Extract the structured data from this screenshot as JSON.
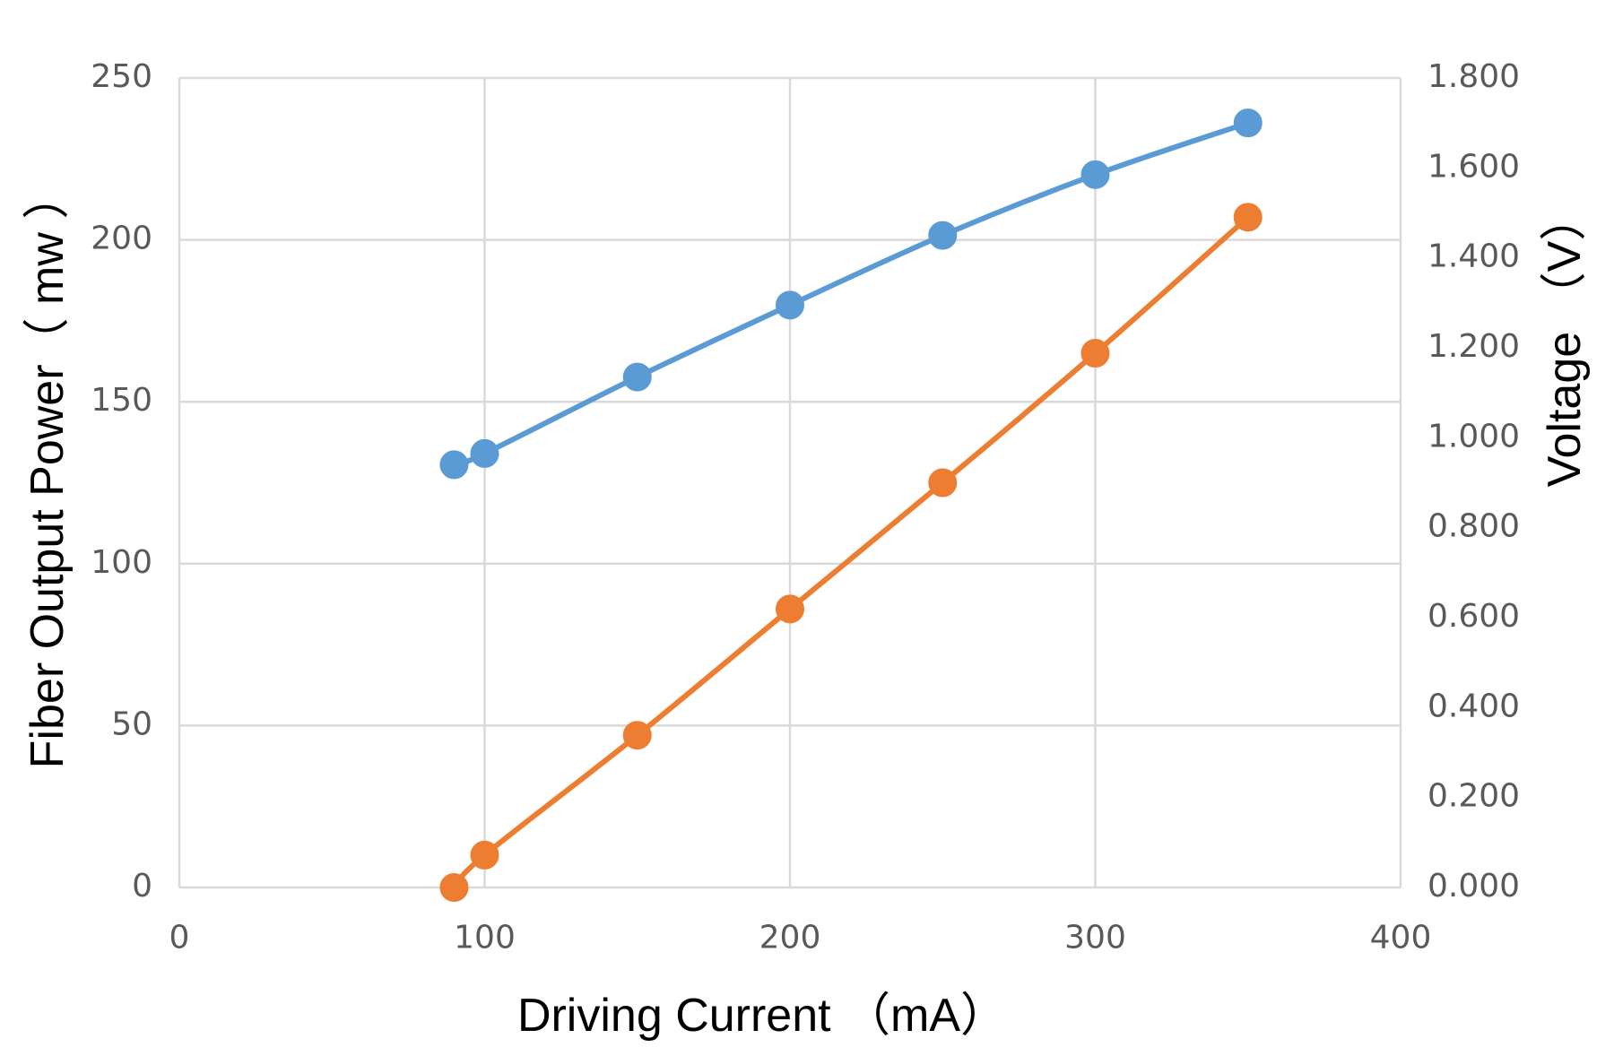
{
  "chart_data": {
    "type": "line",
    "title": "",
    "xlabel": "Driving Current （mA）",
    "ylabel_left": "Fiber Output Power（ mw ）",
    "ylabel_right": "Voltage （V）",
    "xlim": [
      0,
      400
    ],
    "xticks": [
      0,
      100,
      200,
      300,
      400
    ],
    "ylim_left": [
      0,
      250
    ],
    "yticks_left": [
      0,
      50,
      100,
      150,
      200,
      250
    ],
    "ylim_right": [
      0,
      1.8
    ],
    "yticks_right": [
      "0.000",
      "0.200",
      "0.400",
      "0.600",
      "0.800",
      "1.000",
      "1.200",
      "1.400",
      "1.600",
      "1.800"
    ],
    "grid": true,
    "legend": "none",
    "smooth": true,
    "series": [
      {
        "axis": "right",
        "color": "#5b9bd5",
        "points": [
          [
            90,
            0.94
          ],
          [
            100,
            0.965
          ],
          [
            150,
            1.135
          ],
          [
            200,
            1.295
          ],
          [
            250,
            1.45
          ],
          [
            300,
            1.585
          ],
          [
            350,
            1.7
          ]
        ]
      },
      {
        "axis": "left",
        "color": "#ed7d31",
        "points": [
          [
            90,
            0
          ],
          [
            100,
            10
          ],
          [
            150,
            47
          ],
          [
            200,
            86
          ],
          [
            250,
            125
          ],
          [
            300,
            165
          ],
          [
            350,
            207
          ]
        ]
      }
    ]
  }
}
